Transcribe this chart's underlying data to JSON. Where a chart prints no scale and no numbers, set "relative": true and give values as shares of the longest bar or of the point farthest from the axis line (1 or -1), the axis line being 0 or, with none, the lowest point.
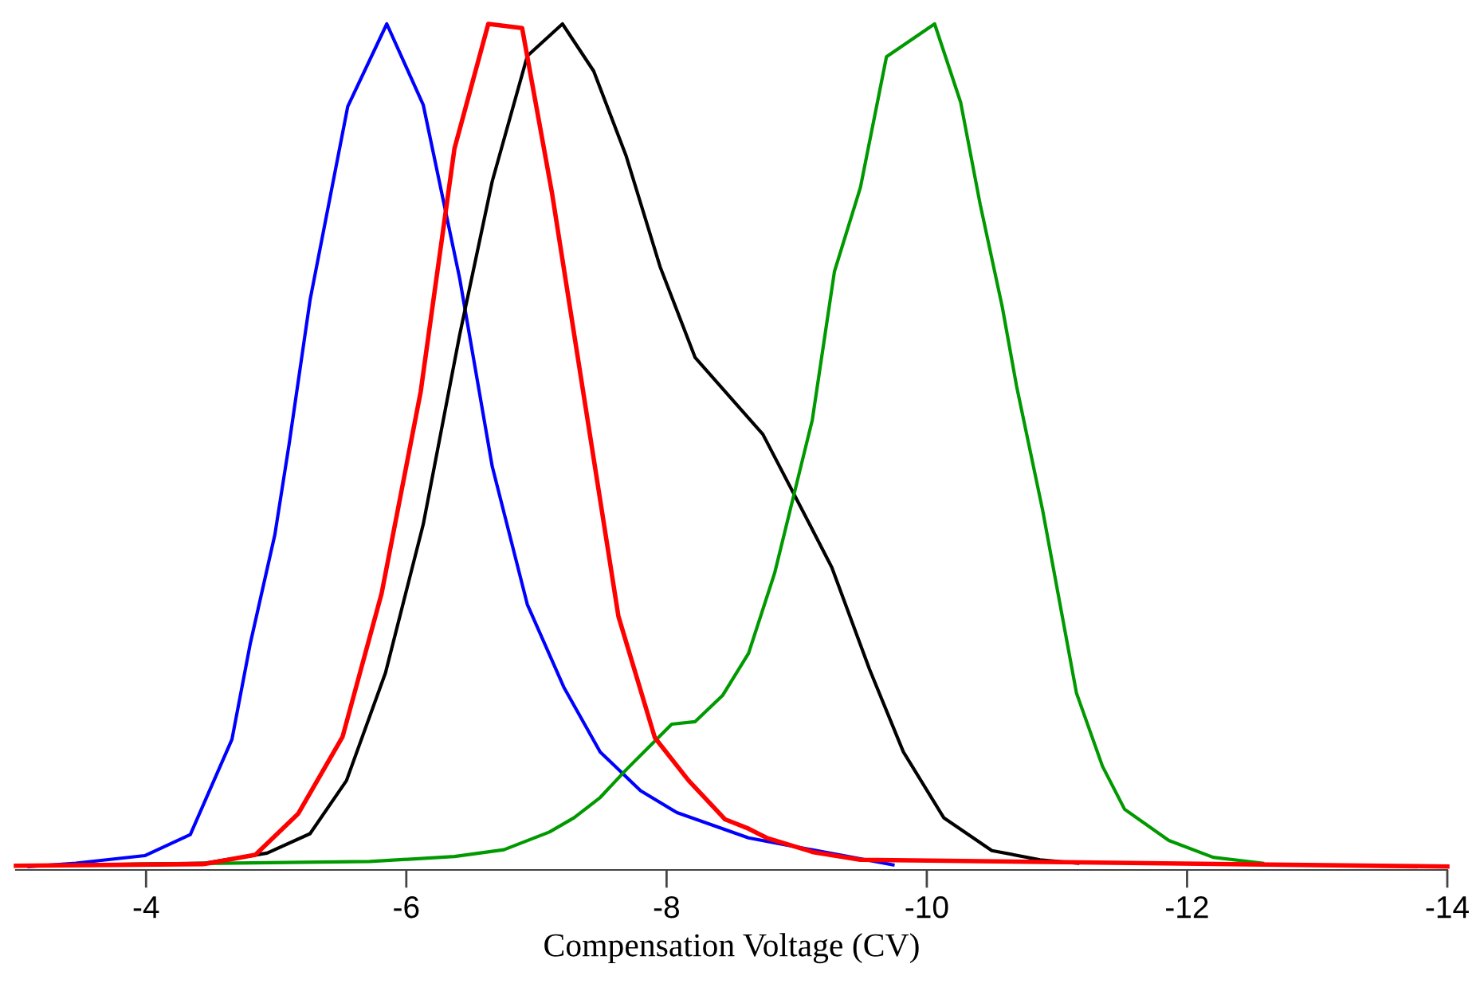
{
  "chart_data": {
    "type": "line",
    "relative": true,
    "xlabel": "Compensation Voltage (CV)",
    "xlim": [
      -3,
      -14
    ],
    "xticks": [
      -4,
      -6,
      -8,
      -10,
      -12,
      -14
    ],
    "tick_labels": "x",
    "series": [
      {
        "color": "#0000ff",
        "x": [
          -3.1,
          -3.46,
          -3.99,
          -4.34,
          -4.66,
          -4.8,
          -4.99,
          -5.1,
          -5.26,
          -5.55,
          -5.85,
          -6.13,
          -6.41,
          -6.66,
          -6.93,
          -7.21,
          -7.49,
          -7.8,
          -8.08,
          -8.63,
          -9.74
        ],
        "values": [
          0,
          0.004,
          0.013,
          0.038,
          0.151,
          0.264,
          0.394,
          0.502,
          0.672,
          0.902,
          1.0,
          0.904,
          0.698,
          0.475,
          0.311,
          0.213,
          0.136,
          0.09,
          0.064,
          0.034,
          0.002
        ]
      },
      {
        "color": "#000000",
        "x": [
          -3.0,
          -4.45,
          -4.93,
          -5.26,
          -5.54,
          -5.84,
          -6.13,
          -6.41,
          -6.66,
          -6.93,
          -7.2,
          -7.44,
          -7.69,
          -7.95,
          -8.22,
          -8.74,
          -9.05,
          -9.27,
          -9.56,
          -9.82,
          -10.13,
          -10.5,
          -10.87,
          -11.16
        ],
        "values": [
          0.001,
          0.004,
          0.016,
          0.039,
          0.102,
          0.23,
          0.406,
          0.631,
          0.813,
          0.962,
          1.0,
          0.944,
          0.843,
          0.712,
          0.604,
          0.513,
          0.421,
          0.355,
          0.234,
          0.136,
          0.058,
          0.019,
          0.008,
          0.004
        ]
      },
      {
        "color": "#009900",
        "x": [
          -3.0,
          -5.72,
          -6.37,
          -6.75,
          -7.1,
          -7.29,
          -7.49,
          -7.69,
          -7.91,
          -8.04,
          -8.22,
          -8.43,
          -8.63,
          -8.83,
          -9.12,
          -9.29,
          -9.49,
          -9.69,
          -10.06,
          -10.26,
          -10.41,
          -10.58,
          -10.69,
          -10.89,
          -11.15,
          -11.35,
          -11.52,
          -11.86,
          -12.2,
          -12.58
        ],
        "values": [
          0.001,
          0.006,
          0.012,
          0.02,
          0.041,
          0.058,
          0.082,
          0.115,
          0.149,
          0.169,
          0.172,
          0.203,
          0.253,
          0.348,
          0.53,
          0.706,
          0.806,
          0.961,
          1.0,
          0.907,
          0.786,
          0.664,
          0.57,
          0.423,
          0.206,
          0.119,
          0.068,
          0.031,
          0.011,
          0.004
        ]
      },
      {
        "color": "#ff0000",
        "x": [
          -3.0,
          -4.45,
          -4.84,
          -5.17,
          -5.51,
          -5.81,
          -6.11,
          -6.37,
          -6.63,
          -6.89,
          -7.12,
          -7.38,
          -7.63,
          -7.91,
          -8.17,
          -8.45,
          -8.63,
          -8.77,
          -9.13,
          -9.49,
          -14
        ],
        "values": [
          0.001,
          0.003,
          0.014,
          0.063,
          0.154,
          0.324,
          0.563,
          0.852,
          1.0,
          0.995,
          0.799,
          0.543,
          0.297,
          0.153,
          0.102,
          0.056,
          0.045,
          0.034,
          0.017,
          0.008,
          0.0
        ]
      }
    ]
  }
}
